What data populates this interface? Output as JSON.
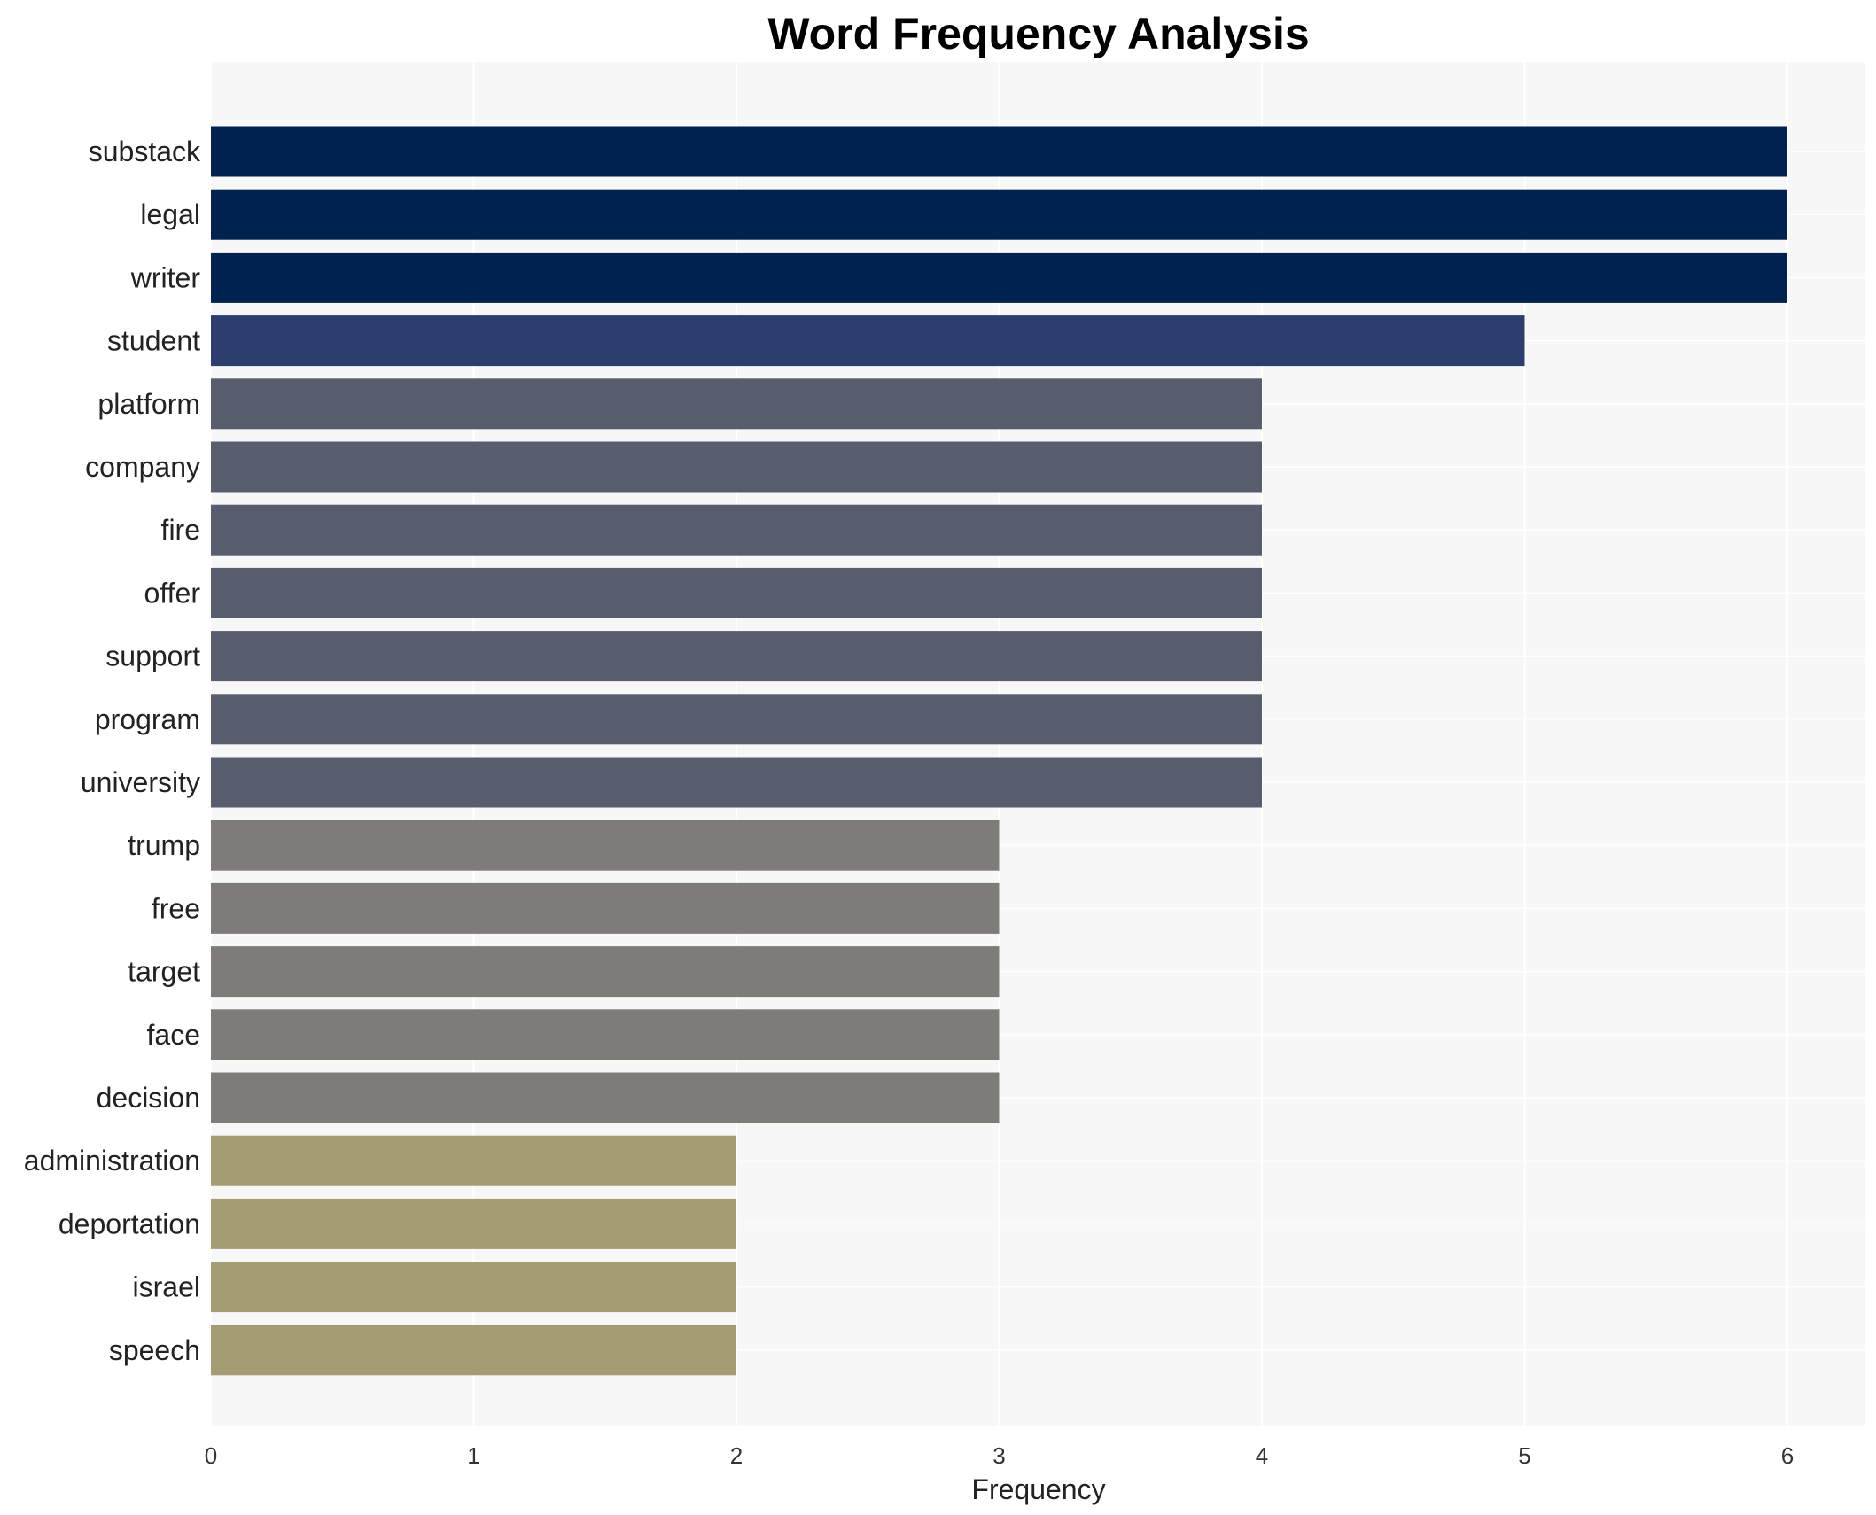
{
  "chart_data": {
    "type": "bar",
    "orientation": "horizontal",
    "title": "Word Frequency Analysis",
    "xlabel": "Frequency",
    "ylabel": "",
    "xlim": [
      0,
      6.3
    ],
    "x_ticks": [
      0,
      1,
      2,
      3,
      4,
      5,
      6
    ],
    "grid": true,
    "legend": "none",
    "background_color": "#f7f7f7",
    "categories": [
      "substack",
      "legal",
      "writer",
      "student",
      "platform",
      "company",
      "fire",
      "offer",
      "support",
      "program",
      "university",
      "trump",
      "free",
      "target",
      "face",
      "decision",
      "administration",
      "deportation",
      "israel",
      "speech"
    ],
    "values": [
      6,
      6,
      6,
      5,
      4,
      4,
      4,
      4,
      4,
      4,
      4,
      3,
      3,
      3,
      3,
      3,
      2,
      2,
      2,
      2
    ],
    "colors": [
      "#00224e",
      "#00224e",
      "#00224e",
      "#2c3e6e",
      "#575d6d",
      "#575d6d",
      "#575d6d",
      "#575d6d",
      "#575d6d",
      "#575d6d",
      "#575d6d",
      "#7d7c78",
      "#7d7c78",
      "#7d7c78",
      "#7d7c78",
      "#7d7c78",
      "#a59c74",
      "#a59c74",
      "#a59c74",
      "#a59c74"
    ]
  }
}
